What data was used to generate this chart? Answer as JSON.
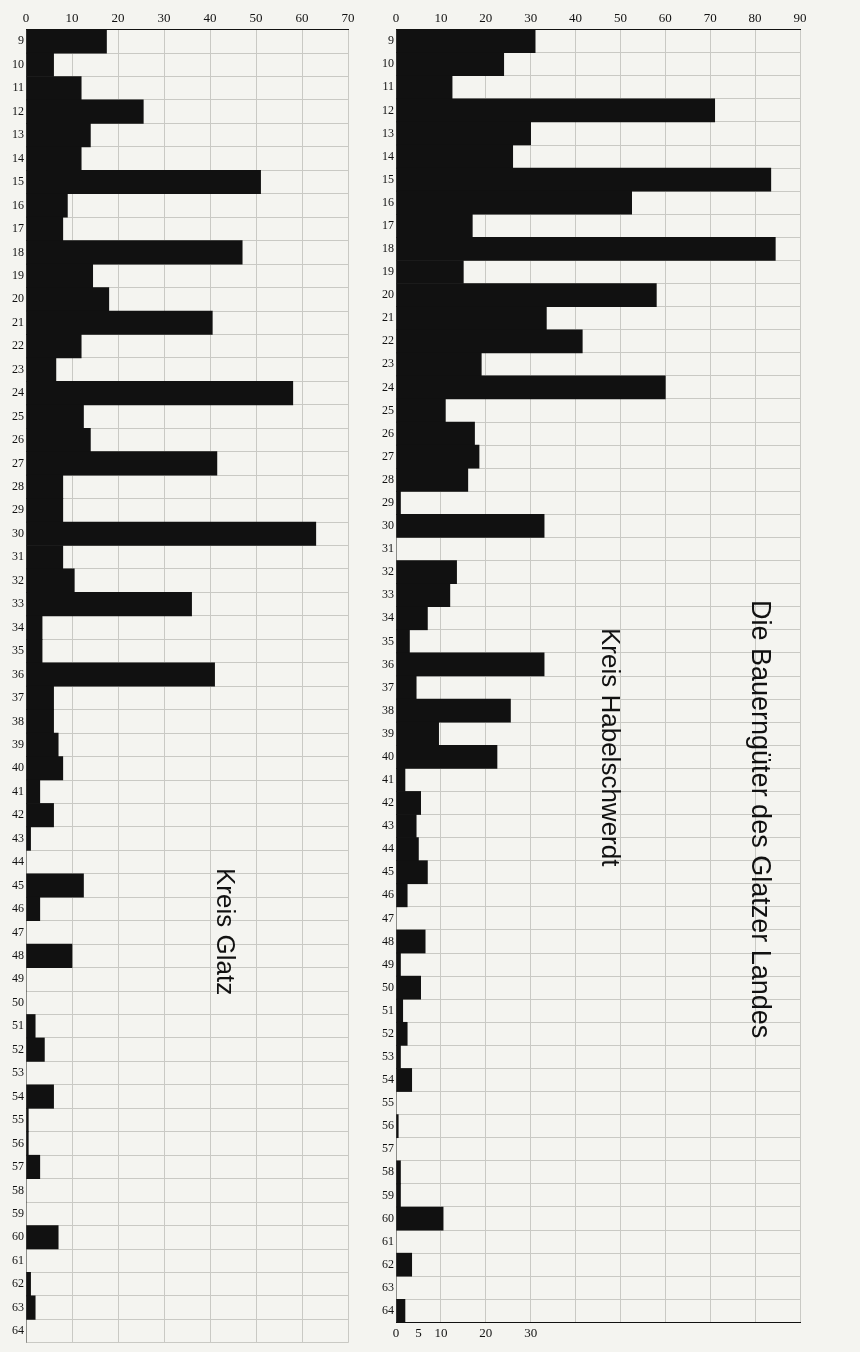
{
  "chart_data": [
    {
      "type": "bar",
      "title": "Die Bauerngüter des Glatzer Landes",
      "subtitle": "Kreis Habelschwerdt",
      "orientation": "horizontal",
      "categories": [
        "9",
        "10",
        "11",
        "12",
        "13",
        "14",
        "15",
        "16",
        "17",
        "18",
        "19",
        "20",
        "21",
        "22",
        "23",
        "24",
        "25",
        "26",
        "27",
        "28",
        "29",
        "30",
        "31",
        "32",
        "33",
        "34",
        "35",
        "36",
        "37",
        "38",
        "39",
        "40",
        "41",
        "42",
        "43",
        "44",
        "45",
        "46",
        "47",
        "48",
        "49",
        "50",
        "51",
        "52",
        "53",
        "54",
        "55",
        "56",
        "57",
        "58",
        "59",
        "60",
        "61",
        "62",
        "63",
        "64"
      ],
      "values": [
        31,
        24,
        12.5,
        71,
        30,
        26,
        83.5,
        52.5,
        17,
        84.5,
        15,
        58,
        33.5,
        41.5,
        19,
        60,
        11,
        17.5,
        18.5,
        16,
        1,
        33,
        0,
        13.5,
        12,
        7,
        3,
        33,
        4.5,
        25.5,
        9.5,
        22.5,
        2,
        5.5,
        4.5,
        5,
        7,
        2.5,
        0,
        6.5,
        1,
        5.5,
        1.5,
        2.5,
        1,
        3.5,
        0,
        0.5,
        0,
        1,
        1,
        10.5,
        0,
        3.5,
        0,
        2
      ],
      "color": "#111111",
      "xlim": [
        0,
        90
      ],
      "xticks": [
        0,
        10,
        20,
        30,
        40,
        50,
        60,
        70,
        80,
        90
      ],
      "x2lim": [
        0,
        90
      ],
      "x2ticks": [
        0,
        5,
        10,
        20,
        30
      ],
      "grid": true,
      "legend": false
    },
    {
      "type": "bar",
      "title": "Kreis Glatz",
      "orientation": "horizontal",
      "categories": [
        "9",
        "10",
        "11",
        "12",
        "13",
        "14",
        "15",
        "16",
        "17",
        "18",
        "19",
        "20",
        "21",
        "22",
        "23",
        "24",
        "25",
        "26",
        "27",
        "28",
        "29",
        "30",
        "31",
        "32",
        "33",
        "34",
        "35",
        "36",
        "37",
        "38",
        "39",
        "40",
        "41",
        "42",
        "43",
        "44",
        "45",
        "46",
        "47",
        "48",
        "49",
        "50",
        "51",
        "52",
        "53",
        "54",
        "55",
        "56",
        "57",
        "58",
        "59",
        "60",
        "61",
        "62",
        "63",
        "64"
      ],
      "values": [
        17.5,
        6,
        12,
        25.5,
        14,
        12,
        51,
        9,
        8,
        47,
        14.5,
        18,
        40.5,
        12,
        6.5,
        58,
        12.5,
        14,
        41.5,
        8,
        8,
        63,
        8,
        10.5,
        36,
        3.5,
        3.5,
        41,
        6,
        6,
        7,
        8,
        3,
        6,
        1,
        0,
        12.5,
        3,
        0,
        10,
        0,
        0,
        2,
        4,
        0,
        6,
        0.5,
        0.5,
        3,
        0,
        0,
        7,
        0,
        1,
        2,
        0
      ],
      "color": "#111111",
      "xlim": [
        0,
        70
      ],
      "xticks": [
        0,
        10,
        20,
        30,
        40,
        50,
        60,
        70
      ],
      "grid": true,
      "legend": false
    }
  ]
}
